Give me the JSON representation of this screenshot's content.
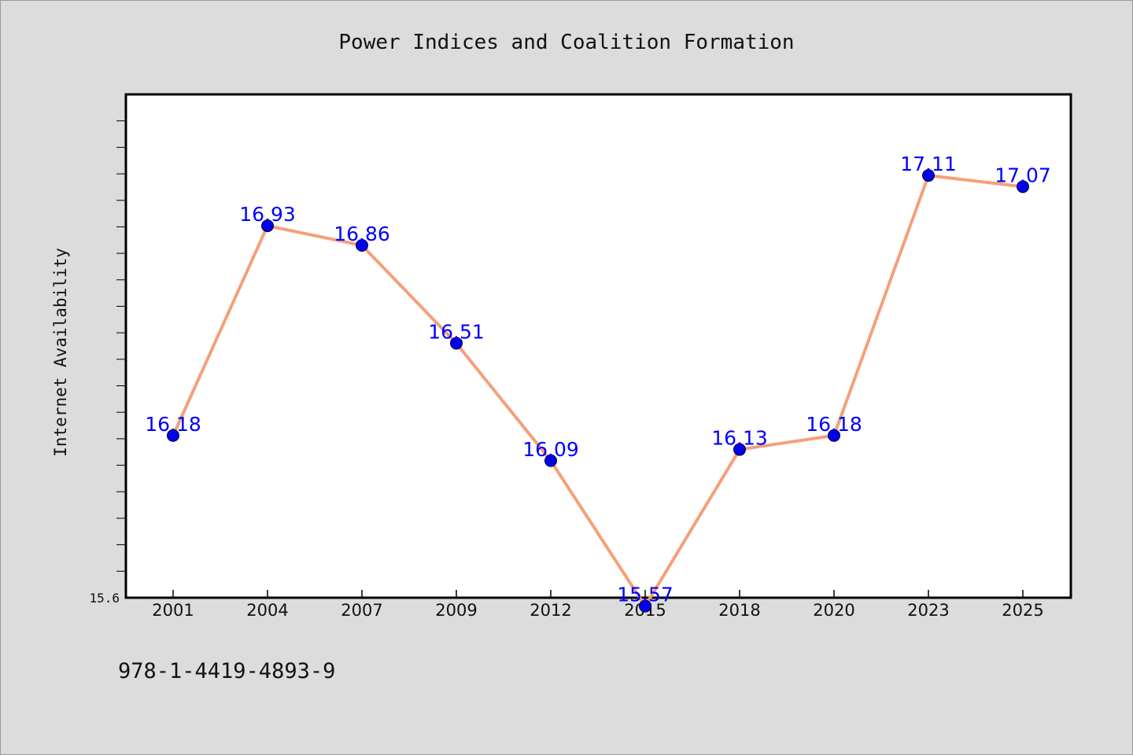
{
  "chart_data": {
    "type": "line",
    "title": "Power Indices and Coalition Formation",
    "xlabel": "",
    "ylabel": "Internet Availability",
    "categories": [
      "2001",
      "2004",
      "2007",
      "2009",
      "2012",
      "2015",
      "2018",
      "2020",
      "2023",
      "2025"
    ],
    "series": [
      {
        "values": [
          16.18,
          16.93,
          16.86,
          16.51,
          16.09,
          15.57,
          16.13,
          16.18,
          17.11,
          17.07
        ],
        "labels": [
          "16.18",
          "16.93",
          "16.86",
          "16.51",
          "16.09",
          "15.57",
          "16.13",
          "16.18",
          "17.11",
          "17.07"
        ],
        "line_color": "#f4a07a",
        "marker_color": "#0000ee"
      }
    ],
    "ylim": [
      15.6,
      17.4
    ],
    "y_tick_labels": [
      "15.6"
    ],
    "y_minor_ticks": 18,
    "grid": false,
    "legend": "none",
    "label_color": "#0000ff"
  },
  "caption": "978-1-4419-4893-9",
  "colors": {
    "background": "#dcdcdc",
    "plot_background": "#ffffff",
    "axis": "#000000"
  }
}
